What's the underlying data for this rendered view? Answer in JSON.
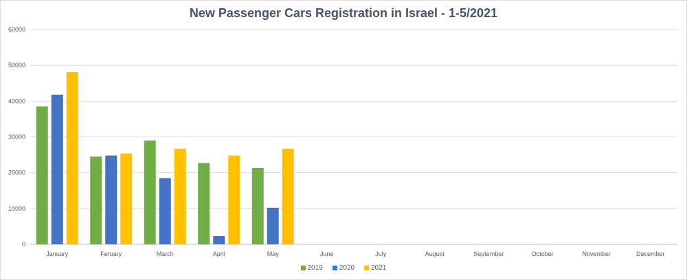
{
  "chart_data": {
    "type": "bar",
    "title": "New Passenger Cars Registration in Israel - 1-5/2021",
    "categories": [
      "January",
      "Feruary",
      "March",
      "April",
      "May",
      "June",
      "July",
      "August",
      "September",
      "October",
      "November",
      "December"
    ],
    "series": [
      {
        "name": "2019",
        "values": [
          38500,
          24500,
          29000,
          22700,
          21300,
          null,
          null,
          null,
          null,
          null,
          null,
          null
        ],
        "color": "#70ad47"
      },
      {
        "name": "2020",
        "values": [
          41800,
          24800,
          18500,
          2300,
          10200,
          null,
          null,
          null,
          null,
          null,
          null,
          null
        ],
        "color": "#4472c4"
      },
      {
        "name": "2021",
        "values": [
          48100,
          25400,
          26700,
          24800,
          26700,
          null,
          null,
          null,
          null,
          null,
          null,
          null
        ],
        "color": "#ffc000"
      }
    ],
    "ylim": [
      0,
      60000
    ],
    "yticks": [
      "0",
      "10000",
      "20000",
      "30000",
      "40000",
      "50000",
      "60000"
    ],
    "grid": true,
    "legend_position": "bottom"
  }
}
